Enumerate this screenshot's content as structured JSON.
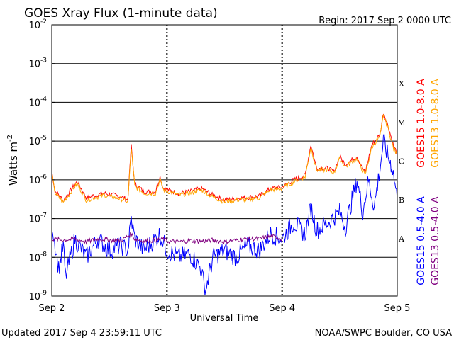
{
  "chart_data": {
    "type": "line",
    "title": "GOES Xray Flux (1-minute data)",
    "begin": "Begin:  2017 Sep 2 0000 UTC",
    "xlabel": "Universal Time",
    "ylabel": "Watts m",
    "ylabel_sup": "-2",
    "yscale": "log",
    "ylim": [
      1e-09,
      0.01
    ],
    "xlim_days": [
      0,
      3
    ],
    "x_ticks": [
      "Sep 2",
      "Sep 3",
      "Sep 4",
      "Sep 5"
    ],
    "y_ticks": [
      {
        "mant": "10",
        "exp": "-9"
      },
      {
        "mant": "10",
        "exp": "-8"
      },
      {
        "mant": "10",
        "exp": "-7"
      },
      {
        "mant": "10",
        "exp": "-6"
      },
      {
        "mant": "10",
        "exp": "-5"
      },
      {
        "mant": "10",
        "exp": "-4"
      },
      {
        "mant": "10",
        "exp": "-3"
      },
      {
        "mant": "10",
        "exp": "-2"
      }
    ],
    "flare_classes": [
      "A",
      "B",
      "C",
      "M",
      "X"
    ],
    "footer_left": "Updated 2017 Sep  4 23:59:11 UTC",
    "footer_right": "NOAA/SWPC Boulder, CO USA",
    "series": [
      {
        "name": "GOES15 1.0-8.0 A",
        "color": "#ff0000",
        "points": [
          [
            0,
            1.6e-06
          ],
          [
            0.03,
            5e-07
          ],
          [
            0.1,
            3e-07
          ],
          [
            0.22,
            9e-07
          ],
          [
            0.3,
            3.5e-07
          ],
          [
            0.45,
            4.5e-07
          ],
          [
            0.55,
            4e-07
          ],
          [
            0.62,
            3.5e-07
          ],
          [
            0.66,
            3e-07
          ],
          [
            0.69,
            7.5e-06
          ],
          [
            0.72,
            8e-07
          ],
          [
            0.8,
            5e-07
          ],
          [
            0.9,
            5e-07
          ],
          [
            0.94,
            1.2e-06
          ],
          [
            0.97,
            6e-07
          ],
          [
            1.1,
            4.5e-07
          ],
          [
            1.2,
            5e-07
          ],
          [
            1.3,
            6e-07
          ],
          [
            1.4,
            4e-07
          ],
          [
            1.5,
            3e-07
          ],
          [
            1.6,
            3.3e-07
          ],
          [
            1.7,
            3.5e-07
          ],
          [
            1.8,
            3.8e-07
          ],
          [
            1.9,
            6e-07
          ],
          [
            2.0,
            6.5e-07
          ],
          [
            2.1,
            1e-06
          ],
          [
            2.2,
            1.3e-06
          ],
          [
            2.25,
            8e-06
          ],
          [
            2.3,
            2e-06
          ],
          [
            2.4,
            2e-06
          ],
          [
            2.45,
            1.6e-06
          ],
          [
            2.5,
            4e-06
          ],
          [
            2.55,
            2.5e-06
          ],
          [
            2.65,
            4e-06
          ],
          [
            2.72,
            1.5e-06
          ],
          [
            2.78,
            8e-06
          ],
          [
            2.85,
            1.5e-05
          ],
          [
            2.88,
            5.5e-05
          ],
          [
            2.92,
            2.5e-05
          ],
          [
            2.97,
            7e-06
          ],
          [
            3.0,
            5e-06
          ]
        ]
      },
      {
        "name": "GOES13 1.0-8.0 A",
        "color": "#ffa500",
        "points": [
          [
            0,
            1.4e-06
          ],
          [
            0.03,
            4.5e-07
          ],
          [
            0.1,
            2.6e-07
          ],
          [
            0.22,
            8e-07
          ],
          [
            0.3,
            3e-07
          ],
          [
            0.45,
            4e-07
          ],
          [
            0.55,
            3.5e-07
          ],
          [
            0.62,
            3.1e-07
          ],
          [
            0.66,
            2.7e-07
          ],
          [
            0.69,
            6.5e-06
          ],
          [
            0.72,
            7e-07
          ],
          [
            0.8,
            4.5e-07
          ],
          [
            0.9,
            4.5e-07
          ],
          [
            0.94,
            1e-06
          ],
          [
            0.97,
            5.5e-07
          ],
          [
            1.1,
            4e-07
          ],
          [
            1.2,
            4.5e-07
          ],
          [
            1.3,
            5.5e-07
          ],
          [
            1.4,
            3.6e-07
          ],
          [
            1.5,
            2.7e-07
          ],
          [
            1.6,
            3e-07
          ],
          [
            1.7,
            3.1e-07
          ],
          [
            1.8,
            3.4e-07
          ],
          [
            1.9,
            5.5e-07
          ],
          [
            2.0,
            6e-07
          ],
          [
            2.1,
            9e-07
          ],
          [
            2.2,
            1.2e-06
          ],
          [
            2.25,
            7e-06
          ],
          [
            2.3,
            1.8e-06
          ],
          [
            2.4,
            1.8e-06
          ],
          [
            2.45,
            1.5e-06
          ],
          [
            2.5,
            3.5e-06
          ],
          [
            2.55,
            2.2e-06
          ],
          [
            2.65,
            3.5e-06
          ],
          [
            2.72,
            1.3e-06
          ],
          [
            2.78,
            7e-06
          ],
          [
            2.85,
            1.3e-05
          ],
          [
            2.88,
            4.5e-05
          ],
          [
            2.92,
            2.2e-05
          ],
          [
            2.97,
            6e-06
          ],
          [
            3.0,
            4.5e-06
          ]
        ]
      },
      {
        "name": "GOES15 0.5-4.0 A",
        "color": "#0000ff",
        "points": [
          [
            0,
            8e-08
          ],
          [
            0.03,
            2e-08
          ],
          [
            0.06,
            5e-09
          ],
          [
            0.1,
            2e-08
          ],
          [
            0.12,
            3e-09
          ],
          [
            0.2,
            3e-08
          ],
          [
            0.3,
            1e-08
          ],
          [
            0.4,
            3e-08
          ],
          [
            0.5,
            1.5e-08
          ],
          [
            0.6,
            2e-08
          ],
          [
            0.66,
            1.5e-08
          ],
          [
            0.69,
            1e-07
          ],
          [
            0.72,
            3e-08
          ],
          [
            0.8,
            1.5e-08
          ],
          [
            0.9,
            3e-08
          ],
          [
            0.94,
            4e-08
          ],
          [
            1.0,
            1.5e-08
          ],
          [
            1.1,
            1e-08
          ],
          [
            1.2,
            1.2e-08
          ],
          [
            1.3,
            5e-09
          ],
          [
            1.33,
            1.2e-09
          ],
          [
            1.4,
            1e-08
          ],
          [
            1.5,
            1.5e-08
          ],
          [
            1.6,
            1e-08
          ],
          [
            1.7,
            2e-08
          ],
          [
            1.8,
            1.5e-08
          ],
          [
            1.9,
            4e-08
          ],
          [
            2.0,
            3e-08
          ],
          [
            2.1,
            8e-08
          ],
          [
            2.2,
            4e-08
          ],
          [
            2.25,
            2e-07
          ],
          [
            2.3,
            5e-08
          ],
          [
            2.4,
            8e-08
          ],
          [
            2.5,
            1.5e-07
          ],
          [
            2.55,
            6e-08
          ],
          [
            2.6,
            2.5e-07
          ],
          [
            2.65,
            1e-06
          ],
          [
            2.7,
            1.5e-07
          ],
          [
            2.75,
            1e-06
          ],
          [
            2.8,
            2e-07
          ],
          [
            2.85,
            2e-06
          ],
          [
            2.88,
            1e-05
          ],
          [
            2.92,
            4e-06
          ],
          [
            2.96,
            2e-06
          ],
          [
            3.0,
            3e-07
          ]
        ]
      },
      {
        "name": "GOES13 0.5-4.0 A",
        "color": "#800080",
        "points": [
          [
            0,
            3e-08
          ],
          [
            0.1,
            2.8e-08
          ],
          [
            0.2,
            3e-08
          ],
          [
            0.3,
            2.5e-08
          ],
          [
            0.4,
            3e-08
          ],
          [
            0.5,
            2.8e-08
          ],
          [
            0.6,
            2.7e-08
          ],
          [
            0.69,
            4e-08
          ],
          [
            0.72,
            3e-08
          ],
          [
            0.8,
            2.6e-08
          ],
          [
            0.9,
            2.8e-08
          ],
          [
            0.97,
            3e-08
          ],
          [
            1.0,
            2.6e-08
          ],
          [
            1.1,
            2.5e-08
          ],
          [
            1.2,
            2.7e-08
          ],
          [
            1.3,
            2.6e-08
          ],
          [
            1.4,
            2.8e-08
          ],
          [
            1.5,
            2.5e-08
          ],
          [
            1.6,
            2.8e-08
          ],
          [
            1.7,
            3e-08
          ],
          [
            1.8,
            3e-08
          ],
          [
            1.9,
            3.5e-08
          ],
          [
            2.0,
            3e-08
          ]
        ]
      }
    ]
  }
}
